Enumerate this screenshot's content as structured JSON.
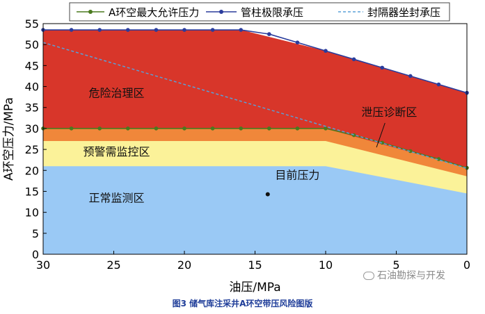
{
  "caption": "图3 储气库注采井A环空带压风险图版",
  "watermark": "石油勘探与开发",
  "chart_data": {
    "type": "area",
    "xlabel": "油压/MPa",
    "ylabel": "A环空压力/MPa",
    "xlim": [
      30,
      0
    ],
    "ylim": [
      0,
      55
    ],
    "x_ticks": [
      30,
      25,
      20,
      15,
      10,
      5,
      0
    ],
    "y_ticks": [
      0,
      5,
      10,
      15,
      20,
      25,
      30,
      35,
      40,
      45,
      50,
      55
    ],
    "legend_position": "top",
    "series": [
      {
        "name": "A环空最大允许压力",
        "style": "line-with-markers",
        "color": "#4a7a1e",
        "x": [
          30,
          28,
          26,
          24,
          22,
          20,
          18,
          16,
          14,
          12,
          10,
          8,
          6,
          4,
          2,
          0
        ],
        "y": [
          30,
          30,
          30,
          30,
          30,
          30,
          30,
          30,
          30,
          30,
          30,
          28.4,
          26.6,
          24.6,
          22.7,
          20.6
        ]
      },
      {
        "name": "管柱极限承压",
        "style": "line-with-markers",
        "color": "#2a3c9c",
        "x": [
          30,
          28,
          26,
          24,
          22,
          20,
          18,
          16,
          14,
          12,
          10,
          8,
          6,
          4,
          2,
          0
        ],
        "y": [
          53.5,
          53.5,
          53.5,
          53.5,
          53.5,
          53.5,
          53.5,
          53.5,
          52.5,
          50.5,
          48.5,
          46.5,
          44.5,
          42.5,
          40.5,
          38.5
        ]
      },
      {
        "name": "封隔器坐封承压",
        "style": "dashed",
        "color": "#5aa0d8",
        "x": [
          30,
          0
        ],
        "y": [
          50.5,
          20.5
        ]
      }
    ],
    "zones": [
      {
        "label": "正常监测区",
        "color": "#9ac9f5",
        "upper_x": [
          30,
          10,
          0
        ],
        "upper_y": [
          21,
          21,
          14.5
        ]
      },
      {
        "label": "预警需监控区",
        "color": "#fbf299",
        "upper_x": [
          30,
          10,
          0
        ],
        "upper_y": [
          27,
          27,
          18.6
        ]
      },
      {
        "label": "泄压诊断区",
        "color": "#f0873a",
        "upper_x": [
          30,
          10,
          0
        ],
        "upper_y": [
          30,
          30,
          20.6
        ]
      },
      {
        "label": "危险治理区",
        "color": "#d8362a",
        "upper_x": [
          30,
          16,
          10,
          0
        ],
        "upper_y": [
          53.5,
          53.5,
          48.5,
          38.5
        ]
      }
    ],
    "annotations": [
      {
        "text": "危险治理区",
        "x": 24.8,
        "y": 37.5
      },
      {
        "text": "预警需监控区",
        "x": 24.8,
        "y": 23.5
      },
      {
        "text": "正常监测区",
        "x": 24.8,
        "y": 12.5
      },
      {
        "text": "泄压诊断区",
        "x": 5.5,
        "y": 33
      },
      {
        "text": "目前压力",
        "x": 12,
        "y": 18,
        "point_x": 14.1,
        "point_y": 14.3
      }
    ]
  }
}
